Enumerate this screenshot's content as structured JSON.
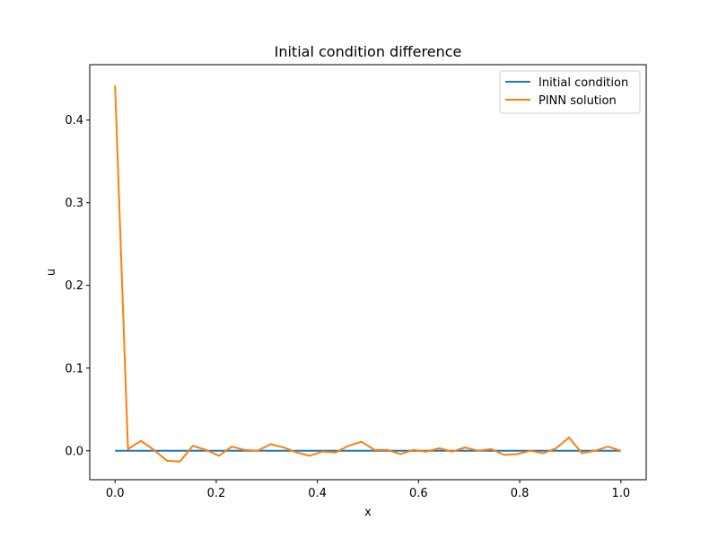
{
  "chart_data": {
    "type": "line",
    "title": "Initial condition difference",
    "xlabel": "x",
    "ylabel": "u",
    "xlim": [
      -0.05,
      1.05
    ],
    "ylim": [
      -0.035,
      0.467
    ],
    "xticks": [
      0.0,
      0.2,
      0.4,
      0.6,
      0.8,
      1.0
    ],
    "xtick_labels": [
      "0.0",
      "0.2",
      "0.4",
      "0.6",
      "0.8",
      "1.0"
    ],
    "yticks": [
      0.0,
      0.1,
      0.2,
      0.3,
      0.4
    ],
    "ytick_labels": [
      "0.0",
      "0.1",
      "0.2",
      "0.3",
      "0.4"
    ],
    "grid": false,
    "legend_position": "upper right",
    "series": [
      {
        "name": "Initial condition",
        "color": "#1f77b4",
        "x": [
          0.0,
          1.0
        ],
        "y": [
          0.0,
          0.0
        ]
      },
      {
        "name": "PINN solution",
        "color": "#ff7f0e",
        "x": [
          0.0,
          0.0256,
          0.0513,
          0.0769,
          0.1026,
          0.1282,
          0.1538,
          0.1795,
          0.2051,
          0.2308,
          0.2564,
          0.2821,
          0.3077,
          0.3333,
          0.359,
          0.3846,
          0.4103,
          0.4359,
          0.4615,
          0.4872,
          0.5128,
          0.5385,
          0.5641,
          0.5897,
          0.6154,
          0.641,
          0.6667,
          0.6923,
          0.7179,
          0.7436,
          0.7692,
          0.7949,
          0.8205,
          0.8462,
          0.8718,
          0.8974,
          0.9231,
          0.9487,
          0.9744,
          1.0
        ],
        "y": [
          0.442,
          0.002,
          0.012,
          0.001,
          -0.012,
          -0.013,
          0.006,
          0.001,
          -0.006,
          0.005,
          0.001,
          0.0,
          0.008,
          0.004,
          -0.002,
          -0.006,
          -0.001,
          -0.002,
          0.006,
          0.011,
          0.001,
          0.001,
          -0.004,
          0.001,
          -0.001,
          0.003,
          -0.001,
          0.004,
          0.0,
          0.002,
          -0.005,
          -0.004,
          0.0,
          -0.003,
          0.003,
          0.016,
          -0.003,
          0.0,
          0.005,
          0.0
        ]
      }
    ]
  }
}
